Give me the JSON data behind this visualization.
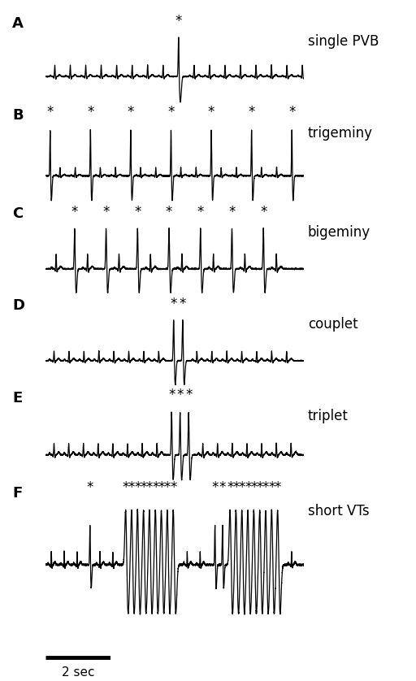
{
  "panels": [
    "A",
    "B",
    "C",
    "D",
    "E",
    "F"
  ],
  "labels": [
    "single PVB",
    "trigeminy",
    "bigeminy",
    "couplet",
    "triplet",
    "short VTs"
  ],
  "background_color": "#ffffff",
  "line_color": "#000000",
  "label_fontsize": 12,
  "panel_label_fontsize": 13,
  "star_fontsize": 12,
  "scalebar_label": "2 sec",
  "scalebar_fontsize": 11
}
